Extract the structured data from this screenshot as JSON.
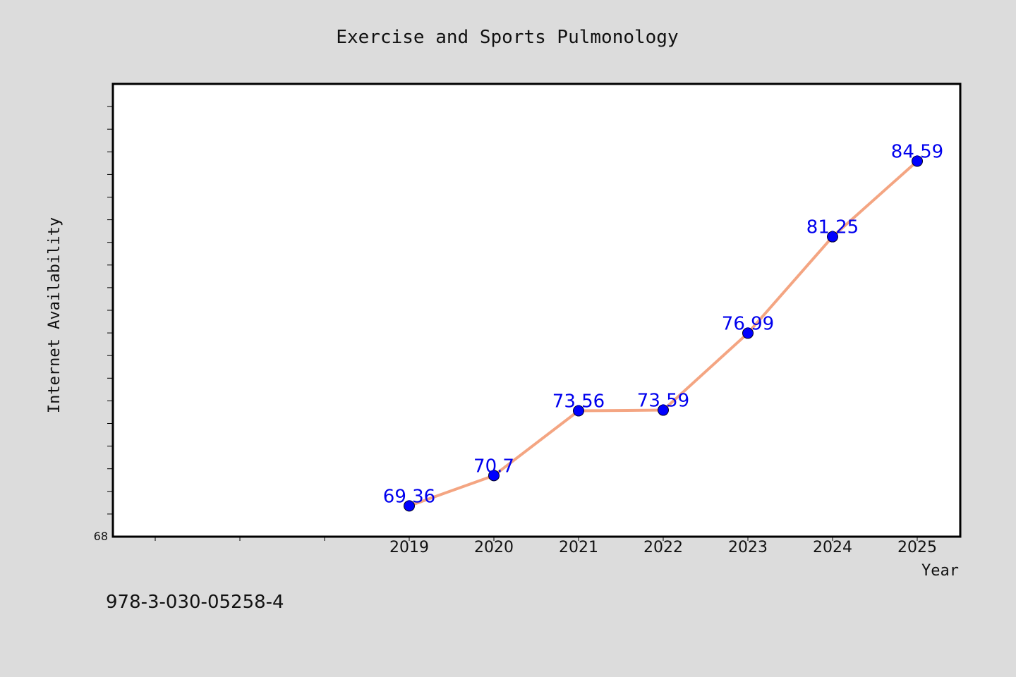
{
  "chart_data": {
    "type": "line",
    "title": "Exercise and Sports Pulmonology",
    "xlabel": "Year",
    "ylabel": "Internet Availability",
    "x": [
      "2019",
      "2020",
      "2021",
      "2022",
      "2023",
      "2024",
      "2025"
    ],
    "values": [
      69.36,
      70.7,
      73.56,
      73.59,
      76.99,
      81.25,
      84.59
    ],
    "data_labels": [
      "69.36",
      "70.7",
      "73.56",
      "73.59",
      "76.99",
      "81.25",
      "84.59"
    ],
    "y_tick_labels": [
      "68"
    ],
    "ylim": [
      68,
      88
    ],
    "grid": false,
    "legend": "none",
    "colors": {
      "background": "#dcdcdc",
      "plot_background": "#ffffff",
      "line": "#f4a582",
      "marker": "#0000ff",
      "data_label": "#0000ee"
    }
  },
  "footnote": "978-3-030-05258-4"
}
